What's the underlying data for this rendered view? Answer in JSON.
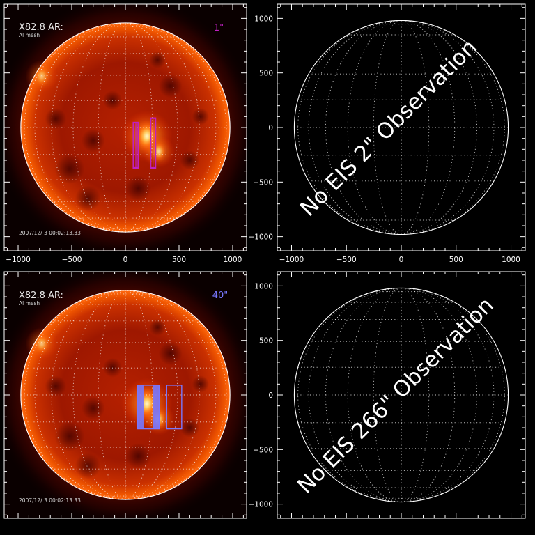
{
  "chart_data": [
    {
      "type": "image",
      "panel": "top-left",
      "image_kind": "solar-disk",
      "title": "",
      "xlabel": "",
      "ylabel": "",
      "xlim": [
        -1130,
        1130
      ],
      "ylim": [
        -1130,
        1130
      ],
      "x_ticks": [
        -1000,
        -500,
        0,
        500,
        1000
      ],
      "y_ticks": [],
      "x_tick_labels": [
        "−1000",
        "−500",
        "0",
        "500",
        "1000"
      ],
      "y_tick_labels": [],
      "solar_radius": 975,
      "grid": "heliographic-dotted",
      "annotation": {
        "title": "X82.8 AR:",
        "subtitle": "Al mesh",
        "date": "2007/12/ 3 00:02:13.33",
        "scale": "1\""
      },
      "scale_color": "#c020c0",
      "rasters": [
        {
          "style": "outline",
          "x": [
            75,
            120
          ],
          "y": [
            -370,
            45
          ],
          "color": "#c020c0"
        },
        {
          "style": "outline",
          "x": [
            235,
            280
          ],
          "y": [
            -370,
            85
          ],
          "color": "#c020c0"
        }
      ],
      "active_regions": [
        {
          "x": 200,
          "y": -80,
          "intensity": 1.0
        },
        {
          "x": 310,
          "y": -220,
          "intensity": 0.8
        },
        {
          "x": -780,
          "y": 470,
          "intensity": 0.6
        }
      ]
    },
    {
      "type": "image",
      "panel": "top-right",
      "image_kind": "empty-disk",
      "title": "",
      "xlabel": "",
      "ylabel": "",
      "xlim": [
        -1130,
        1130
      ],
      "ylim": [
        -1130,
        1130
      ],
      "x_ticks": [
        -1000,
        -500,
        0,
        500,
        1000
      ],
      "y_ticks": [
        1000,
        500,
        0,
        -500,
        -1000
      ],
      "x_tick_labels": [
        "−1000",
        "−500",
        "0",
        "500",
        "1000"
      ],
      "y_tick_labels": [
        "1000",
        "500",
        "0",
        "−500",
        "−1000"
      ],
      "solar_radius": 975,
      "grid": "heliographic-dotted",
      "message": "No EIS 2\" Observation"
    },
    {
      "type": "image",
      "panel": "bottom-left",
      "image_kind": "solar-disk",
      "title": "",
      "xlabel": "",
      "ylabel": "",
      "xlim": [
        -1130,
        1130
      ],
      "ylim": [
        -1130,
        1130
      ],
      "x_ticks": [],
      "y_ticks": [],
      "x_tick_labels": [],
      "y_tick_labels": [],
      "solar_radius": 975,
      "grid": "heliographic-dotted",
      "annotation": {
        "title": "X82.8 AR:",
        "subtitle": "Al mesh",
        "date": "2007/12/ 3 00:02:13.33",
        "scale": "40\""
      },
      "scale_color": "#7878ff",
      "rasters": [
        {
          "style": "striped",
          "x": [
            115,
            315
          ],
          "y": [
            -310,
            90
          ],
          "color": "#7878ff"
        },
        {
          "style": "outline",
          "x": [
            385,
            525
          ],
          "y": [
            -310,
            90
          ],
          "color": "#7878ff"
        }
      ],
      "active_regions": [
        {
          "x": 200,
          "y": -80,
          "intensity": 1.0
        },
        {
          "x": 310,
          "y": -220,
          "intensity": 0.8
        },
        {
          "x": -780,
          "y": 470,
          "intensity": 0.6
        }
      ]
    },
    {
      "type": "image",
      "panel": "bottom-right",
      "image_kind": "empty-disk",
      "title": "",
      "xlabel": "",
      "ylabel": "",
      "xlim": [
        -1130,
        1130
      ],
      "ylim": [
        -1130,
        1130
      ],
      "x_ticks": [],
      "y_ticks": [
        1000,
        500,
        0,
        -500,
        -1000
      ],
      "x_tick_labels": [],
      "y_tick_labels": [
        "1000",
        "500",
        "0",
        "−500",
        "−1000"
      ],
      "solar_radius": 975,
      "grid": "heliographic-dotted",
      "message": "No EIS 266\" Observation"
    }
  ]
}
